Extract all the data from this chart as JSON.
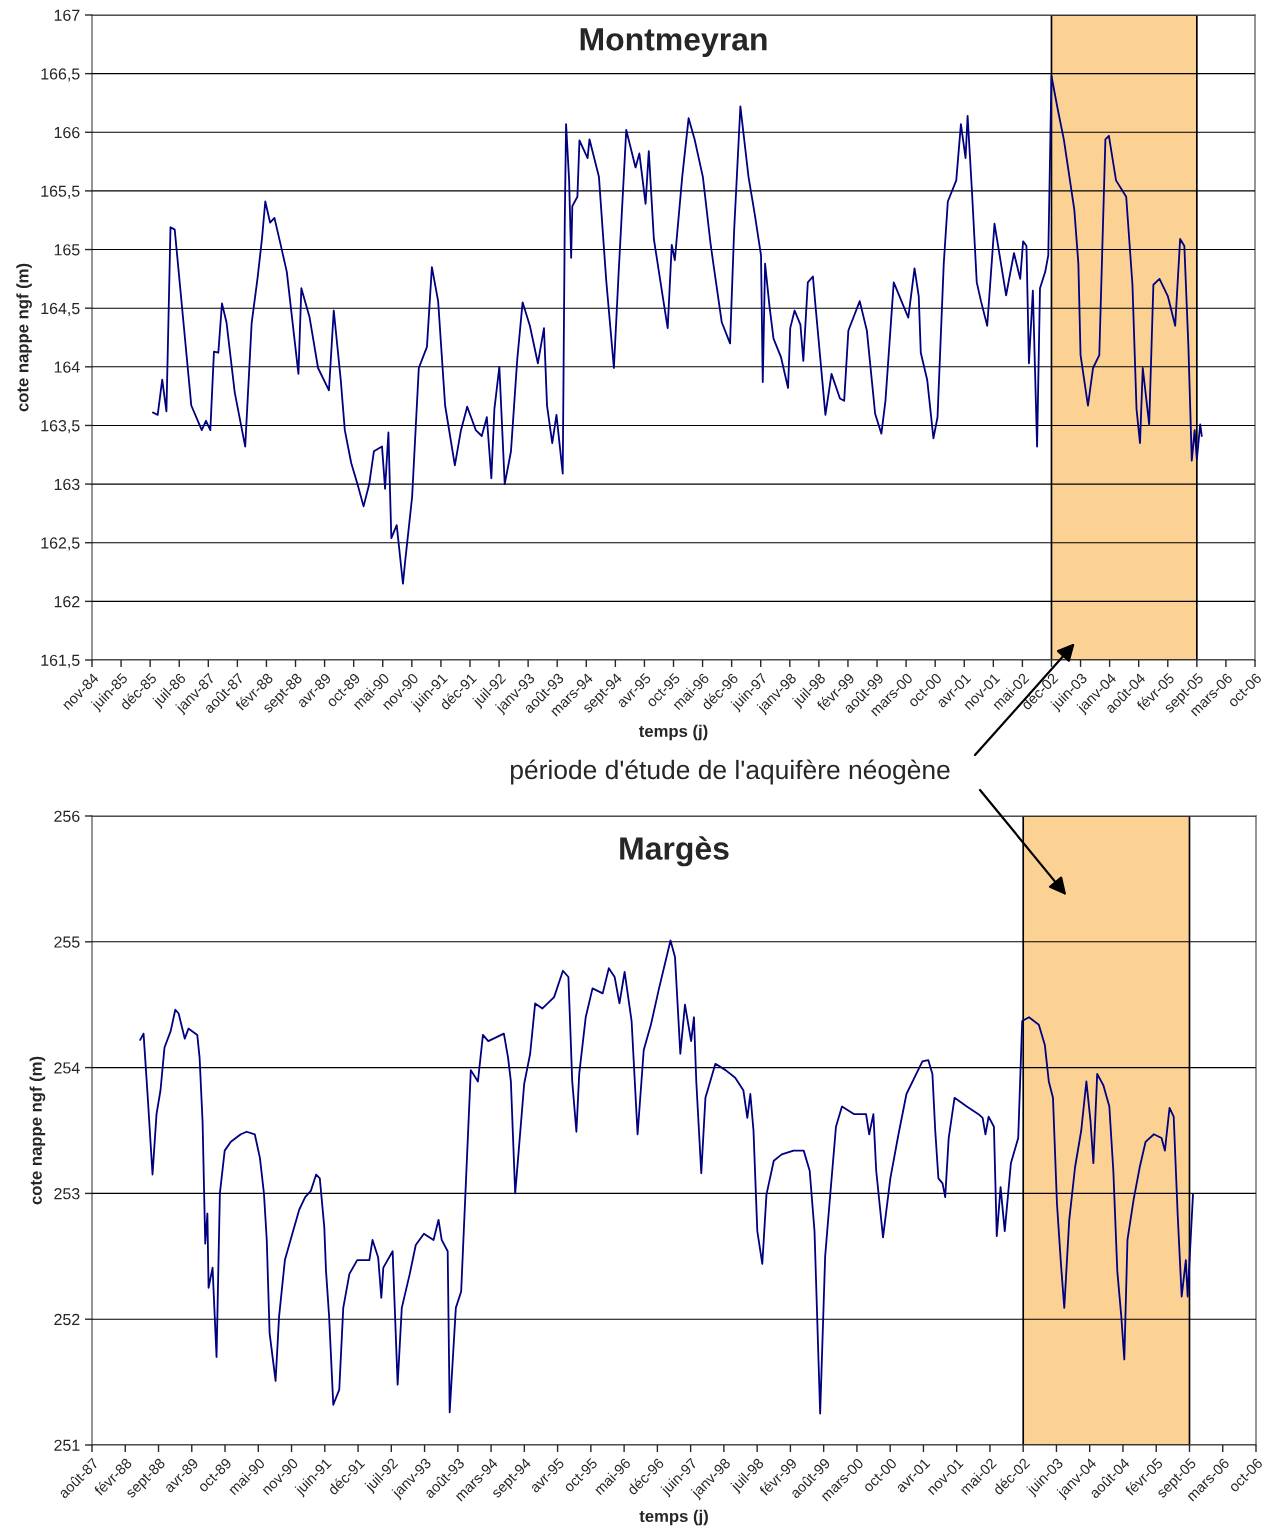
{
  "chart_data": [
    {
      "type": "line",
      "title": "Montmeyran",
      "xlabel": "temps (j)",
      "ylabel": "cote nappe ngf (m)",
      "annotations": [
        "période d'étude de l'aquifère néogène"
      ],
      "x": [
        "1986-01-07",
        "1986-02-09",
        "1986-03-12",
        "1986-04-10",
        "1986-05-08",
        "1986-06-06",
        "1986-09-28",
        "1986-12-09",
        "1987-01-07",
        "1987-02-06",
        "1987-03-03",
        "1987-04-02",
        "1987-04-27",
        "1987-05-28",
        "1987-07-24",
        "1987-10-04",
        "1987-11-17",
        "1987-12-29",
        "1988-01-27",
        "1988-02-19",
        "1988-03-23",
        "1988-04-22",
        "1988-06-04",
        "1988-07-16",
        "1988-10-04",
        "1988-10-24",
        "1988-12-20",
        "1989-02-16",
        "1989-05-02",
        "1989-06-04",
        "1989-07-22",
        "1989-08-19",
        "1989-10-02",
        "1989-11-14",
        "1989-12-26",
        "1990-02-03",
        "1990-03-07",
        "1990-05-02",
        "1990-05-23",
        "1990-06-15",
        "1990-07-05",
        "1990-08-11",
        "1990-09-23",
        "1990-10-08",
        "1990-11-25",
        "1991-01-10",
        "1991-03-07",
        "1991-04-10",
        "1991-05-23",
        "1991-07-10",
        "1991-09-15",
        "1991-10-27",
        "1991-12-09",
        "1992-02-06",
        "1992-03-18",
        "1992-04-22",
        "1992-05-23",
        "1992-06-13",
        "1992-07-17",
        "1992-08-23",
        "1992-10-05",
        "1992-11-17",
        "1992-12-24",
        "1993-02-12",
        "1993-04-08",
        "1993-05-20",
        "1993-06-10",
        "1993-07-16",
        "1993-08-14",
        "1993-09-26",
        "1993-10-10",
        "1993-10-19",
        "1993-11-09",
        "1993-11-23",
        "1993-12-01",
        "1994-01-05",
        "1994-01-19",
        "1994-03-16",
        "1994-03-29",
        "1994-06-02",
        "1994-07-22",
        "1994-09-13",
        "1994-10-16",
        "1994-12-07",
        "1995-02-09",
        "1995-03-07",
        "1995-04-19",
        "1995-05-11",
        "1995-06-15",
        "1995-08-11",
        "1995-09-18",
        "1995-10-16",
        "1995-11-06",
        "1995-12-27",
        "1996-02-09",
        "1996-03-21",
        "1996-05-17",
        "1996-07-08",
        "1996-07-28",
        "1996-09-24",
        "1996-11-20",
        "1996-12-18",
        "1997-01-30",
        "1997-03-27",
        "1997-05-09",
        "1997-06-21",
        "1997-07-03",
        "1997-07-19",
        "1997-08-18",
        "1997-09-15",
        "1997-11-06",
        "1997-12-24",
        "1998-01-08",
        "1998-02-07",
        "1998-03-19",
        "1998-04-08",
        "1998-05-09",
        "1998-06-13",
        "1998-07-03",
        "1998-09-07",
        "1998-10-19",
        "1998-12-16",
        "1999-01-14",
        "1999-02-12",
        "1999-05-01",
        "1999-06-19",
        "1999-08-15",
        "1999-09-27",
        "1999-10-25",
        "1999-12-21",
        "2000-03-30",
        "2000-05-12",
        "2000-06-10",
        "2000-06-24",
        "2000-08-07",
        "2000-09-19",
        "2000-10-17",
        "2000-11-29",
        "2000-12-27",
        "2001-02-23",
        "2001-03-27",
        "2001-04-28",
        "2001-05-12",
        "2001-06-10",
        "2001-07-14",
        "2001-08-12",
        "2001-09-24",
        "2001-11-13",
        "2002-02-01",
        "2002-03-27",
        "2002-05-09",
        "2002-05-29",
        "2002-06-21",
        "2002-07-08",
        "2002-08-04",
        "2002-09-02",
        "2002-09-22",
        "2002-10-28",
        "2002-11-18",
        "2002-12-10",
        "2003-01-23",
        "2003-03-05",
        "2003-05-16",
        "2003-06-13",
        "2003-06-28",
        "2003-08-18",
        "2003-09-22",
        "2003-11-04",
        "2003-12-16",
        "2004-01-09",
        "2004-02-27",
        "2004-05-07",
        "2004-06-19",
        "2004-07-17",
        "2004-08-10",
        "2004-08-29",
        "2004-10-12",
        "2004-11-10",
        "2004-12-22",
        "2005-02-18",
        "2005-04-09",
        "2005-05-13",
        "2005-06-11",
        "2005-07-09",
        "2005-08-01",
        "2005-08-21",
        "2005-09-05",
        "2005-09-28",
        "2005-10-09"
      ],
      "series": [
        {
          "color": "#000080",
          "values": [
            163.61,
            163.59,
            163.89,
            163.62,
            165.19,
            165.17,
            163.67,
            163.46,
            163.54,
            163.46,
            164.13,
            164.12,
            164.54,
            164.38,
            163.78,
            163.32,
            164.37,
            164.77,
            165.09,
            165.41,
            165.23,
            165.27,
            165.04,
            164.81,
            163.94,
            164.67,
            164.42,
            163.99,
            163.8,
            164.48,
            163.89,
            163.46,
            163.18,
            163.0,
            162.81,
            163.0,
            163.28,
            163.32,
            162.96,
            163.44,
            162.54,
            162.65,
            162.15,
            162.34,
            162.89,
            163.99,
            164.17,
            164.85,
            164.56,
            163.67,
            163.16,
            163.46,
            163.66,
            163.46,
            163.41,
            163.57,
            163.05,
            163.64,
            164.0,
            163.0,
            163.28,
            164.06,
            164.55,
            164.35,
            164.03,
            164.33,
            163.67,
            163.35,
            163.59,
            163.09,
            165.23,
            166.07,
            165.59,
            164.93,
            165.37,
            165.45,
            165.93,
            165.78,
            165.94,
            165.62,
            164.74,
            163.99,
            164.81,
            166.02,
            165.7,
            165.82,
            165.39,
            165.84,
            165.09,
            164.63,
            164.33,
            165.04,
            164.91,
            165.62,
            166.12,
            165.94,
            165.62,
            165.06,
            164.88,
            164.38,
            164.2,
            165.16,
            166.22,
            165.62,
            165.3,
            164.95,
            163.87,
            164.88,
            164.52,
            164.24,
            164.08,
            163.82,
            164.33,
            164.48,
            164.36,
            164.05,
            164.72,
            164.77,
            164.49,
            163.59,
            163.94,
            163.73,
            163.71,
            164.31,
            164.56,
            164.31,
            163.6,
            163.43,
            163.71,
            164.72,
            164.42,
            164.84,
            164.6,
            164.12,
            163.89,
            163.39,
            163.57,
            164.88,
            165.41,
            165.59,
            166.07,
            165.78,
            166.14,
            165.52,
            164.72,
            164.56,
            164.35,
            165.22,
            164.61,
            164.97,
            164.75,
            165.07,
            165.03,
            164.03,
            164.65,
            163.32,
            164.67,
            164.81,
            164.95,
            166.48,
            166.19,
            165.94,
            165.34,
            164.88,
            164.1,
            163.67,
            163.99,
            164.1,
            165.94,
            165.97,
            165.59,
            165.45,
            164.7,
            163.64,
            163.35,
            163.99,
            163.51,
            164.7,
            164.75,
            164.6,
            164.35,
            165.09,
            165.03,
            164.17,
            163.2,
            163.46,
            163.21,
            163.51,
            163.41
          ]
        }
      ],
      "xlim": [
        "1984-11-14",
        "2006-10-10"
      ],
      "xticks": [
        {
          "value": "1984-11-14",
          "label": "nov-84"
        },
        {
          "value": "1985-06-02",
          "label": "juin-85"
        },
        {
          "value": "1985-12-19",
          "label": "déc-85"
        },
        {
          "value": "1986-07-07",
          "label": "juil-86"
        },
        {
          "value": "1987-01-23",
          "label": "janv-87"
        },
        {
          "value": "1987-08-11",
          "label": "août-87"
        },
        {
          "value": "1988-02-27",
          "label": "févr-88"
        },
        {
          "value": "1988-09-14",
          "label": "sept-88"
        },
        {
          "value": "1989-04-02",
          "label": "avr-89"
        },
        {
          "value": "1989-10-19",
          "label": "oct-89"
        },
        {
          "value": "1990-05-07",
          "label": "mai-90"
        },
        {
          "value": "1990-11-23",
          "label": "nov-90"
        },
        {
          "value": "1991-06-11",
          "label": "juin-91"
        },
        {
          "value": "1991-12-28",
          "label": "déc-91"
        },
        {
          "value": "1992-07-15",
          "label": "juil-92"
        },
        {
          "value": "1993-01-31",
          "label": "janv-93"
        },
        {
          "value": "1993-08-19",
          "label": "août-93"
        },
        {
          "value": "1994-03-07",
          "label": "mars-94"
        },
        {
          "value": "1994-09-23",
          "label": "sept-94"
        },
        {
          "value": "1995-04-11",
          "label": "avr-95"
        },
        {
          "value": "1995-10-28",
          "label": "oct-95"
        },
        {
          "value": "1996-05-15",
          "label": "mai-96"
        },
        {
          "value": "1996-12-01",
          "label": "déc-96"
        },
        {
          "value": "1997-06-19",
          "label": "juin-97"
        },
        {
          "value": "1998-01-05",
          "label": "janv-98"
        },
        {
          "value": "1998-07-24",
          "label": "juil-98"
        },
        {
          "value": "1999-02-09",
          "label": "févr-99"
        },
        {
          "value": "1999-08-28",
          "label": "août-99"
        },
        {
          "value": "2000-03-15",
          "label": "mars-00"
        },
        {
          "value": "2000-10-01",
          "label": "oct-00"
        },
        {
          "value": "2001-04-19",
          "label": "avr-01"
        },
        {
          "value": "2001-11-05",
          "label": "nov-01"
        },
        {
          "value": "2002-05-24",
          "label": "mai-02"
        },
        {
          "value": "2002-12-10",
          "label": "déc-02"
        },
        {
          "value": "2003-06-28",
          "label": "juin-03"
        },
        {
          "value": "2004-01-14",
          "label": "janv-04"
        },
        {
          "value": "2004-08-01",
          "label": "août-04"
        },
        {
          "value": "2005-02-17",
          "label": "févr-05"
        },
        {
          "value": "2005-09-05",
          "label": "sept-05"
        },
        {
          "value": "2006-03-24",
          "label": "mars-06"
        },
        {
          "value": "2006-10-10",
          "label": "oct-06"
        }
      ],
      "ylim": [
        161.5,
        167
      ],
      "yticks": [
        {
          "value": 161.5,
          "label": "161,5"
        },
        162,
        {
          "value": 162.5,
          "label": "162,5"
        },
        163,
        {
          "value": 163.5,
          "label": "163,5"
        },
        164,
        {
          "value": 164.5,
          "label": "164,5"
        },
        165,
        {
          "value": 165.5,
          "label": "165,5"
        },
        166,
        {
          "value": 166.5,
          "label": "166,5"
        },
        167
      ],
      "grid": "y",
      "bands": [
        {
          "axis": "x",
          "from": "2002-12-10",
          "to": "2005-09-05",
          "color": "#fcd294"
        }
      ]
    },
    {
      "type": "line",
      "title": "Margès",
      "xlabel": "temps (j)",
      "ylabel": "cote nappe ngf (m)",
      "x": [
        "1988-05-27",
        "1988-06-16",
        "1988-07-10",
        "1988-08-09",
        "1988-09-02",
        "1988-09-26",
        "1988-10-20",
        "1988-11-26",
        "1988-12-24",
        "1989-01-13",
        "1989-02-19",
        "1989-03-13",
        "1989-05-05",
        "1989-05-19",
        "1989-06-06",
        "1989-06-22",
        "1989-07-05",
        "1989-07-12",
        "1989-08-05",
        "1989-08-29",
        "1989-09-18",
        "1989-10-17",
        "1989-11-23",
        "1990-01-22",
        "1990-02-26",
        "1990-04-16",
        "1990-05-17",
        "1990-06-10",
        "1990-06-27",
        "1990-07-14",
        "1990-08-19",
        "1990-09-09",
        "1990-10-14",
        "1990-12-02",
        "1991-01-08",
        "1991-02-13",
        "1991-03-19",
        "1991-04-20",
        "1991-05-12",
        "1991-06-08",
        "1991-06-18",
        "1991-07-07",
        "1991-08-01",
        "1991-09-06",
        "1991-09-30",
        "1991-11-06",
        "1991-12-23",
        "1992-03-05",
        "1992-03-24",
        "1992-04-27",
        "1992-05-16",
        "1992-05-28",
        "1992-07-23",
        "1992-08-03",
        "1992-08-22",
        "1992-09-16",
        "1992-11-03",
        "1992-12-09",
        "1993-01-27",
        "1993-03-26",
        "1993-04-25",
        "1993-05-14",
        "1993-06-19",
        "1993-07-01",
        "1993-08-07",
        "1993-09-08",
        "1993-11-05",
        "1993-12-18",
        "1994-01-17",
        "1994-02-18",
        "1994-05-23",
        "1994-06-17",
        "1994-07-04",
        "1994-07-30",
        "1994-08-22",
        "1994-09-22",
        "1994-10-28",
        "1994-11-27",
        "1995-01-10",
        "1995-03-21",
        "1995-05-13",
        "1995-06-15",
        "1995-07-08",
        "1995-08-02",
        "1995-08-19",
        "1995-09-27",
        "1995-11-07",
        "1996-01-07",
        "1996-02-13",
        "1996-03-19",
        "1996-04-17",
        "1996-05-18",
        "1996-06-29",
        "1996-08-04",
        "1996-09-10",
        "1996-10-23",
        "1996-12-11",
        "1997-02-18",
        "1997-03-17",
        "1997-04-18",
        "1997-05-16",
        "1997-06-22",
        "1997-07-09",
        "1997-07-23",
        "1997-08-22",
        "1997-09-16",
        "1997-11-15",
        "1998-01-15",
        "1998-03-14",
        "1998-05-02",
        "1998-05-26",
        "1998-06-13",
        "1998-07-02",
        "1998-07-25",
        "1998-08-24",
        "1998-09-18",
        "1998-11-01",
        "1998-12-19",
        "1999-02-28",
        "1999-04-30",
        "1999-06-05",
        "1999-07-04",
        "1999-08-07",
        "1999-09-06",
        "1999-10-04",
        "1999-11-10",
        "1999-12-16",
        "2000-02-28",
        "2000-05-09",
        "2000-05-28",
        "2000-06-22",
        "2000-07-09",
        "2000-08-19",
        "2000-10-02",
        "2000-11-20",
        "2001-01-07",
        "2001-03-07",
        "2001-04-13",
        "2001-05-18",
        "2001-06-12",
        "2001-06-29",
        "2001-07-18",
        "2001-08-12",
        "2001-08-28",
        "2001-09-18",
        "2001-10-23",
        "2002-01-05",
        "2002-03-16",
        "2002-04-10",
        "2002-04-27",
        "2002-05-16",
        "2002-06-17",
        "2002-07-04",
        "2002-07-27",
        "2002-08-21",
        "2002-09-27",
        "2002-11-10",
        "2002-12-04",
        "2003-01-14",
        "2003-03-14",
        "2003-04-19",
        "2003-05-13",
        "2003-06-07",
        "2003-07-01",
        "2003-07-25",
        "2003-08-14",
        "2003-09-13",
        "2003-10-18",
        "2003-11-24",
        "2003-12-25",
        "2004-01-19",
        "2004-02-05",
        "2004-02-28",
        "2004-04-05",
        "2004-05-11",
        "2004-06-04",
        "2004-06-28",
        "2004-07-22",
        "2004-08-09",
        "2004-08-28",
        "2004-10-04",
        "2004-11-10",
        "2004-12-15",
        "2005-02-03",
        "2005-03-21",
        "2005-04-10",
        "2005-05-08",
        "2005-06-02",
        "2005-06-26",
        "2005-07-20",
        "2005-08-14",
        "2005-08-25",
        "2005-09-26"
      ],
      "series": [
        {
          "color": "#000080",
          "values": [
            254.22,
            254.27,
            253.79,
            253.15,
            253.63,
            253.82,
            254.16,
            254.29,
            254.46,
            254.43,
            254.23,
            254.31,
            254.26,
            254.08,
            253.57,
            252.6,
            252.84,
            252.25,
            252.41,
            251.7,
            253.0,
            253.34,
            253.41,
            253.47,
            253.49,
            253.47,
            253.28,
            253.0,
            252.63,
            251.89,
            251.51,
            252.02,
            252.47,
            252.7,
            252.87,
            252.97,
            253.02,
            253.15,
            253.12,
            252.73,
            252.39,
            252.02,
            251.32,
            251.44,
            252.09,
            252.36,
            252.47,
            252.47,
            252.63,
            252.49,
            252.17,
            252.41,
            252.54,
            252.15,
            251.48,
            252.09,
            252.36,
            252.59,
            252.68,
            252.63,
            252.79,
            252.63,
            252.54,
            251.26,
            252.09,
            252.22,
            253.98,
            253.89,
            254.26,
            254.21,
            254.27,
            254.08,
            253.89,
            253.0,
            253.37,
            253.87,
            254.11,
            254.51,
            254.47,
            254.56,
            254.77,
            254.72,
            253.89,
            253.49,
            253.95,
            254.4,
            254.63,
            254.59,
            254.79,
            254.72,
            254.51,
            254.76,
            254.37,
            253.47,
            254.14,
            254.34,
            254.63,
            255.01,
            254.88,
            254.11,
            254.5,
            254.21,
            254.4,
            253.89,
            253.16,
            253.76,
            254.03,
            253.98,
            253.92,
            253.82,
            253.6,
            253.79,
            253.5,
            252.7,
            252.44,
            252.99,
            253.26,
            253.31,
            253.34,
            253.34,
            253.18,
            252.7,
            251.25,
            252.5,
            252.95,
            253.53,
            253.69,
            253.63,
            253.63,
            253.47,
            253.63,
            253.18,
            252.65,
            253.12,
            253.47,
            253.79,
            253.95,
            254.05,
            254.06,
            253.95,
            253.5,
            253.12,
            253.08,
            252.97,
            253.44,
            253.76,
            253.69,
            253.63,
            253.6,
            253.47,
            253.61,
            253.53,
            252.66,
            253.05,
            252.7,
            253.24,
            253.44,
            254.37,
            254.4,
            254.34,
            254.18,
            253.89,
            253.76,
            252.92,
            252.44,
            252.09,
            252.79,
            253.21,
            253.5,
            253.89,
            253.57,
            253.24,
            253.95,
            253.86,
            253.69,
            253.18,
            252.38,
            252.02,
            251.68,
            252.63,
            252.95,
            253.21,
            253.41,
            253.47,
            253.44,
            253.34,
            253.68,
            253.61,
            252.83,
            252.18,
            252.47,
            252.18,
            252.99
          ]
        }
      ],
      "xlim": [
        "1987-08-11",
        "2006-10-10"
      ],
      "xticks": [
        {
          "value": "1987-08-11",
          "label": "août-87"
        },
        {
          "value": "1988-02-27",
          "label": "févr-88"
        },
        {
          "value": "1988-09-14",
          "label": "sept-88"
        },
        {
          "value": "1989-04-02",
          "label": "avr-89"
        },
        {
          "value": "1989-10-19",
          "label": "oct-89"
        },
        {
          "value": "1990-05-07",
          "label": "mai-90"
        },
        {
          "value": "1990-11-23",
          "label": "nov-90"
        },
        {
          "value": "1991-06-11",
          "label": "juin-91"
        },
        {
          "value": "1991-12-28",
          "label": "déc-91"
        },
        {
          "value": "1992-07-15",
          "label": "juil-92"
        },
        {
          "value": "1993-01-31",
          "label": "janv-93"
        },
        {
          "value": "1993-08-19",
          "label": "août-93"
        },
        {
          "value": "1994-03-07",
          "label": "mars-94"
        },
        {
          "value": "1994-09-23",
          "label": "sept-94"
        },
        {
          "value": "1995-04-11",
          "label": "avr-95"
        },
        {
          "value": "1995-10-28",
          "label": "oct-95"
        },
        {
          "value": "1996-05-15",
          "label": "mai-96"
        },
        {
          "value": "1996-12-01",
          "label": "déc-96"
        },
        {
          "value": "1997-06-19",
          "label": "juin-97"
        },
        {
          "value": "1998-01-05",
          "label": "janv-98"
        },
        {
          "value": "1998-07-24",
          "label": "juil-98"
        },
        {
          "value": "1999-02-09",
          "label": "févr-99"
        },
        {
          "value": "1999-08-28",
          "label": "août-99"
        },
        {
          "value": "2000-03-15",
          "label": "mars-00"
        },
        {
          "value": "2000-10-01",
          "label": "oct-00"
        },
        {
          "value": "2001-04-19",
          "label": "avr-01"
        },
        {
          "value": "2001-11-05",
          "label": "nov-01"
        },
        {
          "value": "2002-05-24",
          "label": "mai-02"
        },
        {
          "value": "2002-12-10",
          "label": "déc-02"
        },
        {
          "value": "2003-06-28",
          "label": "juin-03"
        },
        {
          "value": "2004-01-14",
          "label": "janv-04"
        },
        {
          "value": "2004-08-01",
          "label": "août-04"
        },
        {
          "value": "2005-02-17",
          "label": "févr-05"
        },
        {
          "value": "2005-09-05",
          "label": "sept-05"
        },
        {
          "value": "2006-03-24",
          "label": "mars-06"
        },
        {
          "value": "2006-10-10",
          "label": "oct-06"
        }
      ],
      "ylim": [
        251,
        256
      ],
      "yticks": [
        251,
        252,
        253,
        254,
        255,
        256
      ],
      "grid": "y",
      "bands": [
        {
          "axis": "x",
          "from": "2002-12-10",
          "to": "2005-09-05",
          "color": "#fcd294"
        }
      ]
    }
  ]
}
